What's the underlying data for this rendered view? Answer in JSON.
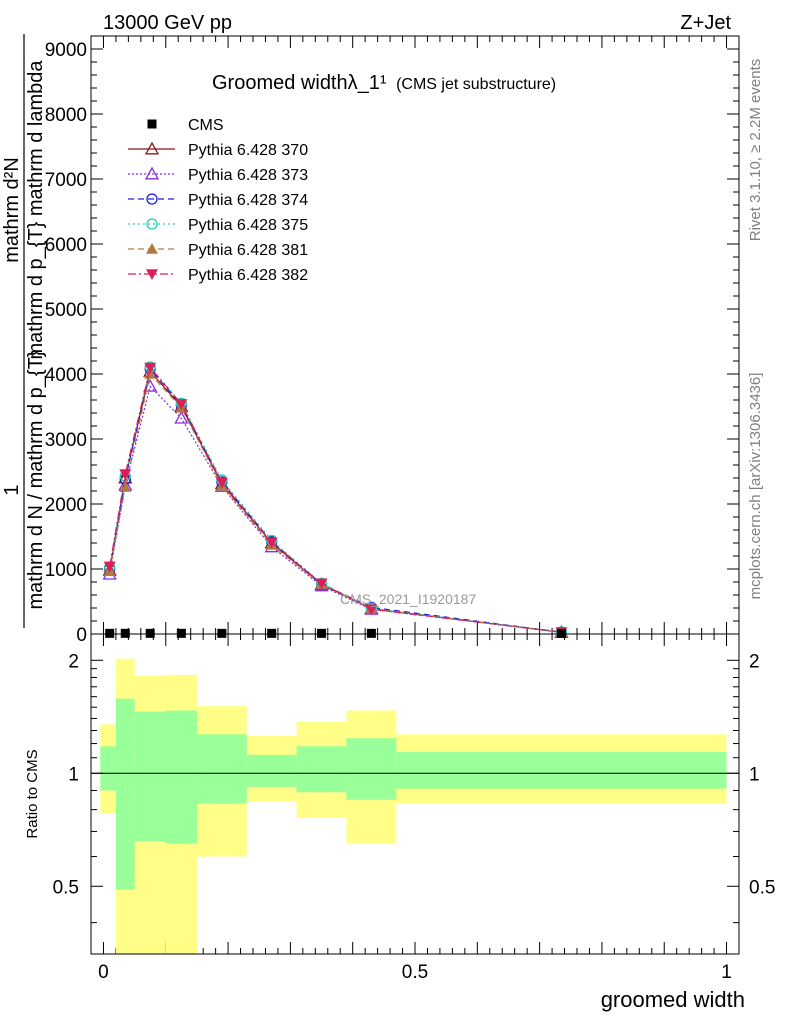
{
  "header": {
    "energy_label": "13000 GeV pp",
    "process_label": "Z+Jet"
  },
  "side_labels": {
    "rivet": "Rivet 3.1.10, ≥ 2.2M events",
    "mcplots": "mcplots.cern.ch [arXiv:1306.3436]"
  },
  "watermark": "CMS_2021_I1920187",
  "ylabel_main": {
    "numerator_top": "mathrm d²N",
    "numerator_bottom": "mathrm d p_{T} mathrm d lambda",
    "prefactor": "1",
    "denominator": "mathrm d N / mathrm d p_{T}"
  },
  "ylabel_ratio": "Ratio to CMS",
  "xlabel": "groomed width",
  "colors": {
    "band_outer": "#ffff88",
    "band_inner": "#99ff99",
    "cms": "#000000",
    "s370": "#8b1a1a",
    "s373": "#8b2be2",
    "s374": "#1c1cdc",
    "s375": "#20d0b0",
    "s381": "#b07a45",
    "s382": "#dc1f5a"
  },
  "chart_data": {
    "type": "line",
    "title": "Groomed widthλ_1¹",
    "title_suffix": "(CMS jet substructure)",
    "xlim": [
      -0.02,
      1.02
    ],
    "ylim": [
      0,
      9200
    ],
    "x": [
      0.01,
      0.035,
      0.075,
      0.125,
      0.19,
      0.27,
      0.35,
      0.43,
      0.735
    ],
    "y_ticks": [
      0,
      1000,
      2000,
      3000,
      4000,
      5000,
      6000,
      7000,
      8000,
      9000
    ],
    "y_tick_labels": [
      "0",
      "1000",
      "2000",
      "3000",
      "4000",
      "5000",
      "6000",
      "7000",
      "8000",
      "9000"
    ],
    "legend_position": "top-left",
    "series": [
      {
        "name": "CMS",
        "style": "cms",
        "values": [
          10,
          10,
          10,
          10,
          10,
          10,
          10,
          10,
          10
        ]
      },
      {
        "name": "Pythia 6.428 370",
        "style": "s370",
        "values": [
          980,
          2400,
          4040,
          3500,
          2310,
          1400,
          760,
          390,
          25
        ]
      },
      {
        "name": "Pythia 6.428 373",
        "style": "s373",
        "values": [
          920,
          2290,
          3810,
          3320,
          2270,
          1340,
          740,
          380,
          25
        ]
      },
      {
        "name": "Pythia 6.428 374",
        "style": "s374",
        "values": [
          1000,
          2380,
          4080,
          3520,
          2340,
          1420,
          770,
          410,
          28
        ]
      },
      {
        "name": "Pythia 6.428 375",
        "style": "s375",
        "values": [
          1030,
          2430,
          4110,
          3550,
          2370,
          1440,
          780,
          395,
          28
        ]
      },
      {
        "name": "Pythia 6.428 381",
        "style": "s381",
        "values": [
          970,
          2260,
          4000,
          3480,
          2280,
          1370,
          760,
          390,
          25
        ]
      },
      {
        "name": "Pythia 6.428 382",
        "style": "s382",
        "values": [
          1040,
          2460,
          4100,
          3540,
          2330,
          1410,
          780,
          380,
          30
        ]
      }
    ],
    "ratio": {
      "ylabel": "Ratio to CMS",
      "ylim": [
        0.33,
        2.35
      ],
      "scale": "log",
      "ticks": [
        0.5,
        1,
        2
      ],
      "tick_labels": [
        "0.5",
        "1",
        "2"
      ],
      "x_ticks": [
        0,
        0.5,
        1
      ],
      "x_tick_labels": [
        "0",
        "0.5",
        "1"
      ],
      "bands": [
        {
          "x0": -0.005,
          "x1": 0.02,
          "outer": [
            0.78,
            1.35
          ],
          "inner": [
            0.9,
            1.18
          ]
        },
        {
          "x0": 0.02,
          "x1": 0.05,
          "outer": [
            0.3,
            2.02
          ],
          "inner": [
            0.49,
            1.58
          ]
        },
        {
          "x0": 0.05,
          "x1": 0.1,
          "outer": [
            0.3,
            1.82
          ],
          "inner": [
            0.66,
            1.46
          ]
        },
        {
          "x0": 0.1,
          "x1": 0.15,
          "outer": [
            0.3,
            1.83
          ],
          "inner": [
            0.65,
            1.47
          ]
        },
        {
          "x0": 0.15,
          "x1": 0.23,
          "outer": [
            0.6,
            1.51
          ],
          "inner": [
            0.83,
            1.27
          ]
        },
        {
          "x0": 0.23,
          "x1": 0.31,
          "outer": [
            0.84,
            1.26
          ],
          "inner": [
            0.92,
            1.12
          ]
        },
        {
          "x0": 0.31,
          "x1": 0.39,
          "outer": [
            0.76,
            1.37
          ],
          "inner": [
            0.89,
            1.18
          ]
        },
        {
          "x0": 0.39,
          "x1": 0.47,
          "outer": [
            0.65,
            1.47
          ],
          "inner": [
            0.85,
            1.24
          ]
        },
        {
          "x0": 0.47,
          "x1": 1.0,
          "outer": [
            0.83,
            1.27
          ],
          "inner": [
            0.91,
            1.14
          ]
        }
      ]
    }
  }
}
